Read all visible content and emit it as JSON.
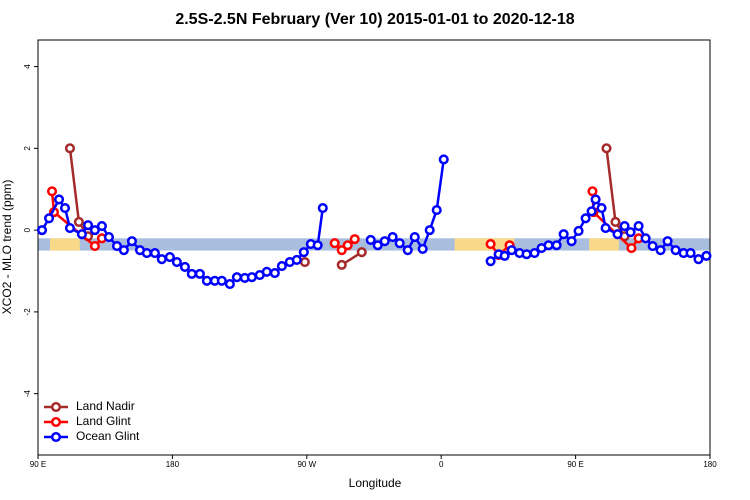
{
  "chart_data": {
    "type": "line",
    "title": "2.5S-2.5N February (Ver 10)   2015-01-01 to 2020-12-18",
    "x_label": "Longitude",
    "y_label": "XCO2 - MLO trend (ppm)",
    "xlim": [
      90,
      540
    ],
    "xticks": [
      {
        "value": 90,
        "label": "90 E"
      },
      {
        "value": 180,
        "label": "180"
      },
      {
        "value": 270,
        "label": "90 W"
      },
      {
        "value": 360,
        "label": "0"
      },
      {
        "value": 450,
        "label": "90 E"
      },
      {
        "value": 540,
        "label": "180"
      }
    ],
    "ylim": [
      -5.5,
      4.65
    ],
    "yticks": [
      -4,
      -2,
      0,
      2,
      4
    ],
    "band": [
      -0.5,
      -0.2
    ],
    "band_color": "#a9bede",
    "land_color": "#f8d98a",
    "land_ranges": [
      [
        98,
        118
      ],
      [
        369,
        409
      ],
      [
        459,
        479
      ]
    ],
    "legend": "bottom-left",
    "series": [
      {
        "name": "Land Nadir",
        "color": "#a52a2a",
        "x": [
          111.4,
          117.4,
          123.5,
          null,
          268.7,
          null,
          293.4,
          306.8,
          null,
          470.7,
          476.7,
          482.8
        ],
        "values": [
          2.0,
          0.2,
          -0.15,
          null,
          -0.78,
          null,
          -0.85,
          -0.54,
          null,
          2.0,
          0.2,
          -0.15
        ]
      },
      {
        "name": "Land Glint",
        "color": "#ff0000",
        "x": [
          99.4,
          100.7,
          128.1,
          132.8,
          null,
          288.7,
          293.4,
          297.4,
          302.1,
          null,
          393.1,
          398.5,
          405.8,
          null,
          461.3,
          462.0,
          487.4,
          492.2
        ],
        "values": [
          0.95,
          0.44,
          -0.39,
          -0.2,
          null,
          -0.32,
          -0.49,
          -0.37,
          -0.22,
          null,
          -0.34,
          -0.61,
          -0.37,
          null,
          0.95,
          0.44,
          -0.44,
          -0.2
        ]
      },
      {
        "name": "Ocean Glint",
        "color": "#0000ff",
        "x": [
          92.7,
          97.4,
          104.1,
          108.1,
          111.4,
          119.4,
          123.5,
          128.1,
          132.8,
          137.5,
          142.9,
          147.5,
          152.9,
          158.3,
          162.9,
          168.3,
          172.9,
          178.3,
          183.0,
          188.4,
          193.0,
          198.4,
          203.1,
          208.4,
          213.1,
          218.5,
          223.2,
          228.5,
          233.2,
          238.5,
          243.2,
          248.6,
          253.3,
          258.6,
          263.3,
          268.0,
          272.7,
          277.3,
          280.7,
          null,
          312.8,
          317.5,
          322.2,
          327.5,
          332.2,
          337.6,
          342.3,
          347.6,
          352.3,
          357.0,
          361.7,
          null,
          393.1,
          398.5,
          402.5,
          407.2,
          412.5,
          417.2,
          422.5,
          427.2,
          431.9,
          437.3,
          442.0,
          447.3,
          452.0,
          456.7,
          460.7,
          463.4,
          467.4,
          470.1,
          478.1,
          482.8,
          486.8,
          492.2,
          496.9,
          501.6,
          506.9,
          511.6,
          517.0,
          522.3,
          527.0,
          532.3,
          537.6
        ],
        "values": [
          0,
          0.29,
          0.75,
          0.54,
          0.05,
          -0.1,
          0.12,
          0.0,
          0.1,
          -0.17,
          -0.39,
          -0.49,
          -0.27,
          -0.49,
          -0.56,
          -0.56,
          -0.71,
          -0.66,
          -0.78,
          -0.9,
          -1.07,
          -1.07,
          -1.24,
          -1.24,
          -1.24,
          -1.32,
          -1.15,
          -1.17,
          -1.15,
          -1.1,
          -1.02,
          -1.05,
          -0.88,
          -0.78,
          -0.73,
          -0.54,
          -0.34,
          -0.37,
          0.54,
          null,
          -0.24,
          -0.37,
          -0.27,
          -0.17,
          -0.32,
          -0.49,
          -0.17,
          -0.46,
          0,
          0.49,
          1.73,
          null,
          -0.76,
          -0.59,
          -0.63,
          -0.49,
          -0.56,
          -0.59,
          -0.56,
          -0.44,
          -0.37,
          -0.37,
          -0.1,
          -0.27,
          -0.02,
          0.29,
          0.46,
          0.75,
          0.54,
          0.05,
          -0.1,
          0.1,
          -0.05,
          0.1,
          -0.2,
          -0.39,
          -0.49,
          -0.27,
          -0.49,
          -0.56,
          -0.56,
          -0.71,
          -0.63
        ]
      }
    ]
  }
}
